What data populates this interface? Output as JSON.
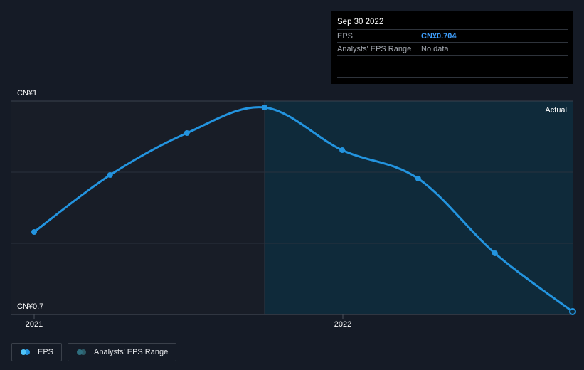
{
  "tooltip": {
    "date": "Sep 30 2022",
    "rows": [
      {
        "label": "EPS",
        "value": "CN¥0.704"
      },
      {
        "label": "Analysts' EPS Range",
        "value": "No data"
      }
    ]
  },
  "region_label": "Actual",
  "legend": [
    {
      "label": "EPS",
      "colors": [
        "#4fc3f7",
        "#2394df"
      ]
    },
    {
      "label": "Analysts' EPS Range",
      "colors": [
        "#2e6e7e",
        "#2c5a66"
      ]
    }
  ],
  "colors": {
    "background": "#151b26",
    "past_region": "#181d27",
    "actual_region": "#0f2a3a",
    "line": "#2394df",
    "grid": "#2a313d"
  },
  "chart_data": {
    "type": "line",
    "y_tick_labels": [
      "CN¥1",
      "CN¥0.7"
    ],
    "ylim": [
      0.7,
      1.0
    ],
    "x_tick_labels": [
      "2021",
      "2022"
    ],
    "xlim": [
      "2020-12-31",
      "2022-09-30"
    ],
    "grid": true,
    "series": [
      {
        "name": "EPS",
        "x": [
          "2020-12-31",
          "2021-03-31",
          "2021-06-30",
          "2021-09-30",
          "2021-12-31",
          "2022-03-31",
          "2022-06-30",
          "2022-09-30"
        ],
        "y": [
          0.816,
          0.896,
          0.955,
          0.991,
          0.931,
          0.891,
          0.786,
          0.704
        ]
      }
    ]
  }
}
